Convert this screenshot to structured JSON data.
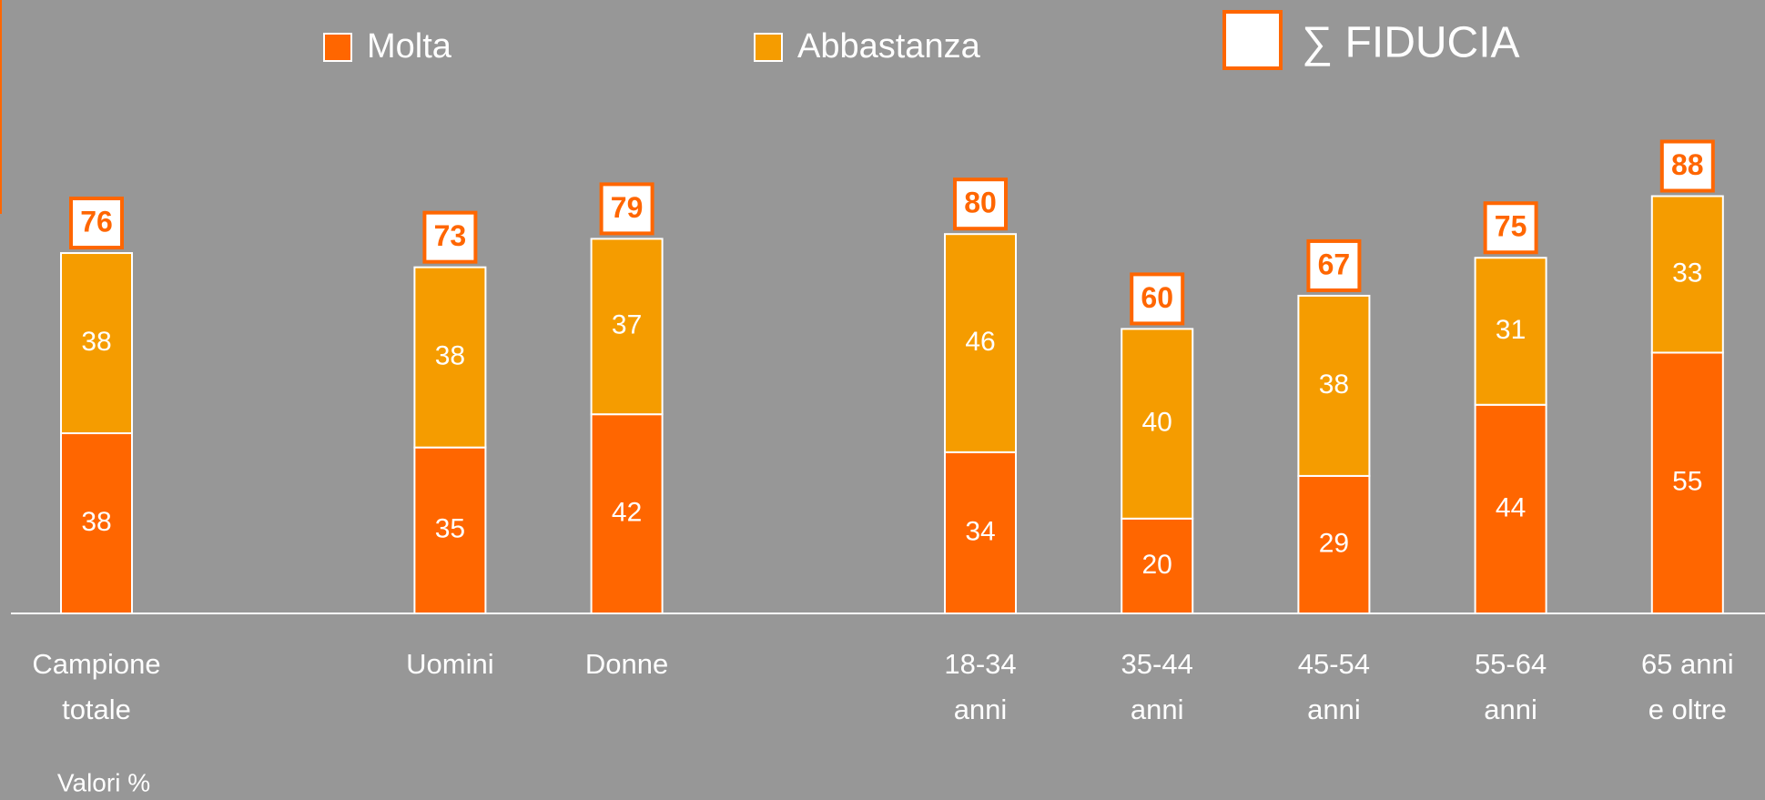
{
  "chart_data": {
    "type": "stacked_bar",
    "categories": [
      "Campione\ntotale",
      null,
      "Uomini",
      "Donne",
      null,
      "18-34\nanni",
      "35-44\nanni",
      "45-54\nanni",
      "55-64\nanni",
      "65 anni\ne oltre"
    ],
    "series": [
      {
        "name": "Molta",
        "color": "#ff6600",
        "values": [
          38,
          null,
          35,
          42,
          null,
          34,
          20,
          29,
          44,
          55
        ]
      },
      {
        "name": "Abbastanza",
        "color": "#f59c00",
        "values": [
          38,
          null,
          38,
          37,
          null,
          46,
          40,
          38,
          31,
          33
        ]
      }
    ],
    "totals_name": "∑ FIDUCIA",
    "totals": [
      76,
      null,
      73,
      79,
      null,
      80,
      60,
      67,
      75,
      88
    ],
    "ylim": [
      0,
      100
    ],
    "note": "Valori %"
  }
}
